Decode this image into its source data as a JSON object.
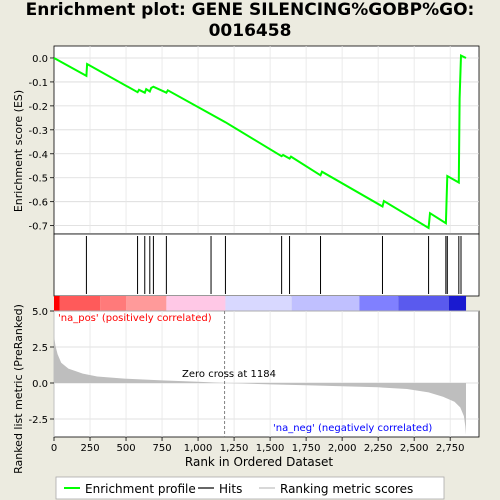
{
  "title_line1": "Enrichment plot: GENE SILENCING%GOBP%GO:",
  "title_line2": "0016458",
  "colors": {
    "es_line": "#00ff00",
    "hit_line": "#000000",
    "metric_fill": "#bebebe",
    "zero_cross_line": "#808080",
    "pos_label": "#ff0000",
    "neg_label": "#0000ff"
  },
  "legend": {
    "items": [
      {
        "label": "Enrichment profile",
        "swatch": "green-line"
      },
      {
        "label": "Hits",
        "swatch": "black-line"
      },
      {
        "label": "Ranking metric scores",
        "swatch": "gray-line"
      }
    ]
  },
  "chart_data": [
    {
      "type": "line",
      "panel": "enrichment-score",
      "ylabel": "Enrichment score (ES)",
      "xlim": [
        0,
        2950
      ],
      "ylim": [
        -0.735,
        0.05
      ],
      "yticks": [
        0.0,
        -0.1,
        -0.2,
        -0.3,
        -0.4,
        -0.5,
        -0.6,
        -0.7
      ],
      "ytick_labels": [
        "0.0",
        "-0.1",
        "-0.2",
        "-0.3",
        "-0.4",
        "-0.5",
        "-0.6",
        "-0.7"
      ],
      "grid": true,
      "points": [
        {
          "x": 0,
          "y": 0.0
        },
        {
          "x": 225,
          "y": -0.075
        },
        {
          "x": 230,
          "y": -0.025
        },
        {
          "x": 580,
          "y": -0.143
        },
        {
          "x": 590,
          "y": -0.133
        },
        {
          "x": 630,
          "y": -0.145
        },
        {
          "x": 640,
          "y": -0.13
        },
        {
          "x": 665,
          "y": -0.14
        },
        {
          "x": 675,
          "y": -0.125
        },
        {
          "x": 690,
          "y": -0.12
        },
        {
          "x": 780,
          "y": -0.145
        },
        {
          "x": 790,
          "y": -0.135
        },
        {
          "x": 1090,
          "y": -0.235
        },
        {
          "x": 1190,
          "y": -0.268
        },
        {
          "x": 1580,
          "y": -0.41
        },
        {
          "x": 1590,
          "y": -0.405
        },
        {
          "x": 1635,
          "y": -0.42
        },
        {
          "x": 1645,
          "y": -0.412
        },
        {
          "x": 1850,
          "y": -0.49
        },
        {
          "x": 1860,
          "y": -0.475
        },
        {
          "x": 2280,
          "y": -0.62
        },
        {
          "x": 2290,
          "y": -0.597
        },
        {
          "x": 2600,
          "y": -0.71
        },
        {
          "x": 2610,
          "y": -0.648
        },
        {
          "x": 2720,
          "y": -0.69
        },
        {
          "x": 2725,
          "y": -0.59
        },
        {
          "x": 2730,
          "y": -0.493
        },
        {
          "x": 2810,
          "y": -0.52
        },
        {
          "x": 2815,
          "y": -0.17
        },
        {
          "x": 2825,
          "y": 0.01
        },
        {
          "x": 2860,
          "y": 0.0
        }
      ]
    },
    {
      "type": "hits",
      "panel": "hits",
      "xlim": [
        0,
        2950
      ],
      "hits": [
        225,
        580,
        630,
        665,
        690,
        780,
        1090,
        1190,
        1580,
        1635,
        1850,
        2280,
        2600,
        2720,
        2730,
        2810,
        2825
      ]
    },
    {
      "type": "heatmap",
      "panel": "rank-color-bar",
      "xlim": [
        0,
        2950
      ],
      "segments": [
        {
          "from": 0,
          "to": 40,
          "color": "#ff0000"
        },
        {
          "from": 40,
          "to": 320,
          "color": "#ff5a5a"
        },
        {
          "from": 320,
          "to": 500,
          "color": "#ff7a7a"
        },
        {
          "from": 500,
          "to": 780,
          "color": "#ff9a9a"
        },
        {
          "from": 780,
          "to": 1190,
          "color": "#ffc8e6"
        },
        {
          "from": 1190,
          "to": 1650,
          "color": "#d8d8ff"
        },
        {
          "from": 1650,
          "to": 2120,
          "color": "#c0c0ff"
        },
        {
          "from": 2120,
          "to": 2390,
          "color": "#8080ff"
        },
        {
          "from": 2390,
          "to": 2740,
          "color": "#5a5aee"
        },
        {
          "from": 2740,
          "to": 2860,
          "color": "#1a1ad0"
        }
      ]
    },
    {
      "type": "area",
      "panel": "ranked-list-metric",
      "ylabel": "Ranked list metric (PreRanked)",
      "xlabel": "Rank in Ordered Dataset",
      "xlim": [
        0,
        2950
      ],
      "ylim": [
        -3.75,
        5.0
      ],
      "yticks": [
        5.0,
        2.5,
        0.0,
        -2.5
      ],
      "ytick_labels": [
        "5.0",
        "2.5",
        "0.0",
        "-2.5"
      ],
      "xticks": [
        0,
        250,
        500,
        750,
        1000,
        1250,
        1500,
        1750,
        2000,
        2250,
        2500,
        2750
      ],
      "xtick_labels": [
        "0",
        "250",
        "500",
        "750",
        "1,000",
        "1,250",
        "1,500",
        "1,750",
        "2,000",
        "2,250",
        "2,500",
        "2,750"
      ],
      "grid": true,
      "points": [
        {
          "x": 0,
          "y": 3.3
        },
        {
          "x": 10,
          "y": 2.6
        },
        {
          "x": 25,
          "y": 2.0
        },
        {
          "x": 50,
          "y": 1.4
        },
        {
          "x": 100,
          "y": 1.0
        },
        {
          "x": 200,
          "y": 0.65
        },
        {
          "x": 300,
          "y": 0.45
        },
        {
          "x": 500,
          "y": 0.3
        },
        {
          "x": 750,
          "y": 0.18
        },
        {
          "x": 1000,
          "y": 0.08
        },
        {
          "x": 1184,
          "y": 0.0
        },
        {
          "x": 1500,
          "y": -0.1
        },
        {
          "x": 1750,
          "y": -0.16
        },
        {
          "x": 2000,
          "y": -0.22
        },
        {
          "x": 2250,
          "y": -0.3
        },
        {
          "x": 2450,
          "y": -0.42
        },
        {
          "x": 2600,
          "y": -0.65
        },
        {
          "x": 2700,
          "y": -0.95
        },
        {
          "x": 2780,
          "y": -1.3
        },
        {
          "x": 2820,
          "y": -1.7
        },
        {
          "x": 2845,
          "y": -2.3
        },
        {
          "x": 2855,
          "y": -3.0
        },
        {
          "x": 2860,
          "y": -3.6
        }
      ],
      "zero_cross": 1184,
      "annotations": {
        "pos": "'na_pos' (positively correlated)",
        "neg": "'na_neg' (negatively correlated)",
        "zero": "Zero cross at 1184"
      }
    }
  ]
}
